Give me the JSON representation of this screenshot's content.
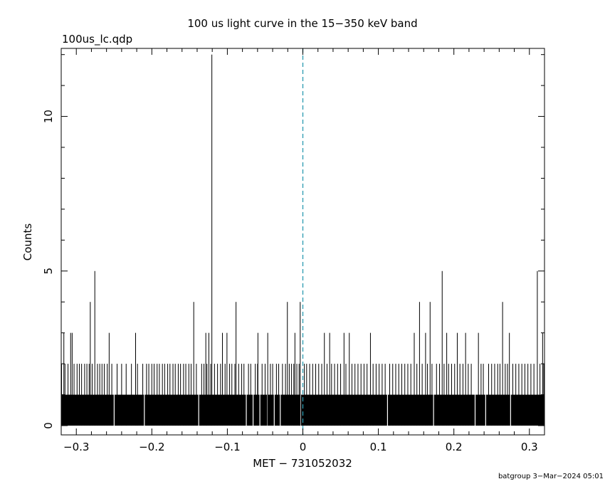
{
  "chart_data": {
    "type": "bar",
    "title": "100 us light curve in the 15−350 keV band",
    "file_label": "100us_lc.qdp",
    "xlabel": "MET − 731052032",
    "ylabel": "Counts",
    "footer": "batgroup  3−Mar−2024 05:01",
    "xlim": [
      -0.32,
      0.32
    ],
    "ylim": [
      -0.3,
      12.2
    ],
    "x_ticks": [
      -0.3,
      -0.2,
      -0.1,
      0,
      0.1,
      0.2,
      0.3
    ],
    "x_tick_labels": [
      "−0.3",
      "−0.2",
      "−0.1",
      "0",
      "0.1",
      "0.2",
      "0.3"
    ],
    "y_ticks": [
      0,
      5,
      10
    ],
    "y_tick_labels": [
      "0",
      "5",
      "10"
    ],
    "bin_width": 0.0001,
    "baseline_counts": 1,
    "marker_x": 0,
    "marker_color": "#2a9ab0",
    "bar_color": "#000000",
    "zero_count_bins_x": [
      -0.25,
      -0.21,
      -0.138,
      -0.075,
      -0.066,
      -0.057,
      -0.047,
      -0.038,
      -0.03,
      -0.003,
      0.112,
      0.173,
      0.228,
      0.242,
      0.275
    ],
    "peaks": [
      {
        "x": -0.3165,
        "y": 3
      },
      {
        "x": -0.3075,
        "y": 3
      },
      {
        "x": -0.3055,
        "y": 3
      },
      {
        "x": -0.2815,
        "y": 4
      },
      {
        "x": -0.2755,
        "y": 5
      },
      {
        "x": -0.2565,
        "y": 3
      },
      {
        "x": -0.2215,
        "y": 3
      },
      {
        "x": -0.1445,
        "y": 4
      },
      {
        "x": -0.1285,
        "y": 3
      },
      {
        "x": -0.1245,
        "y": 3
      },
      {
        "x": -0.1205,
        "y": 12
      },
      {
        "x": -0.1065,
        "y": 3
      },
      {
        "x": -0.1005,
        "y": 3
      },
      {
        "x": -0.0885,
        "y": 4
      },
      {
        "x": -0.0595,
        "y": 3
      },
      {
        "x": -0.0465,
        "y": 3
      },
      {
        "x": -0.0205,
        "y": 4
      },
      {
        "x": -0.0105,
        "y": 3
      },
      {
        "x": -0.0035,
        "y": 4
      },
      {
        "x": 0.0285,
        "y": 3
      },
      {
        "x": 0.0355,
        "y": 3
      },
      {
        "x": 0.0545,
        "y": 3
      },
      {
        "x": 0.0615,
        "y": 3
      },
      {
        "x": 0.0895,
        "y": 3
      },
      {
        "x": 0.1475,
        "y": 3
      },
      {
        "x": 0.1545,
        "y": 4
      },
      {
        "x": 0.1625,
        "y": 3
      },
      {
        "x": 0.1685,
        "y": 4
      },
      {
        "x": 0.1845,
        "y": 5
      },
      {
        "x": 0.1905,
        "y": 3
      },
      {
        "x": 0.2045,
        "y": 3
      },
      {
        "x": 0.2155,
        "y": 3
      },
      {
        "x": 0.2325,
        "y": 3
      },
      {
        "x": 0.2645,
        "y": 4
      },
      {
        "x": 0.2735,
        "y": 3
      },
      {
        "x": 0.3105,
        "y": 5
      },
      {
        "x": 0.3175,
        "y": 3
      }
    ],
    "double_count_bins_x": [
      -0.3195,
      -0.315,
      -0.311,
      -0.303,
      -0.299,
      -0.296,
      -0.293,
      -0.289,
      -0.286,
      -0.283,
      -0.279,
      -0.272,
      -0.269,
      -0.266,
      -0.263,
      -0.259,
      -0.253,
      -0.246,
      -0.24,
      -0.234,
      -0.227,
      -0.219,
      -0.212,
      -0.207,
      -0.204,
      -0.2,
      -0.197,
      -0.193,
      -0.19,
      -0.186,
      -0.183,
      -0.179,
      -0.176,
      -0.172,
      -0.169,
      -0.165,
      -0.162,
      -0.158,
      -0.155,
      -0.151,
      -0.148,
      -0.141,
      -0.134,
      -0.131,
      -0.127,
      -0.122,
      -0.117,
      -0.113,
      -0.109,
      -0.103,
      -0.097,
      -0.094,
      -0.09,
      -0.085,
      -0.081,
      -0.078,
      -0.072,
      -0.069,
      -0.063,
      -0.06,
      -0.054,
      -0.05,
      -0.043,
      -0.04,
      -0.035,
      -0.032,
      -0.027,
      -0.023,
      -0.018,
      -0.015,
      -0.012,
      -0.008,
      -0.005,
      0.002,
      0.005,
      0.009,
      0.013,
      0.017,
      0.021,
      0.025,
      0.032,
      0.038,
      0.042,
      0.046,
      0.05,
      0.057,
      0.065,
      0.069,
      0.073,
      0.077,
      0.081,
      0.085,
      0.093,
      0.097,
      0.101,
      0.105,
      0.109,
      0.115,
      0.119,
      0.123,
      0.127,
      0.131,
      0.135,
      0.139,
      0.143,
      0.151,
      0.158,
      0.165,
      0.171,
      0.177,
      0.181,
      0.187,
      0.193,
      0.197,
      0.201,
      0.208,
      0.212,
      0.219,
      0.223,
      0.236,
      0.239,
      0.246,
      0.25,
      0.254,
      0.258,
      0.261,
      0.268,
      0.271,
      0.278,
      0.282,
      0.286,
      0.29,
      0.294,
      0.298,
      0.302,
      0.306,
      0.314,
      0.319
    ]
  }
}
